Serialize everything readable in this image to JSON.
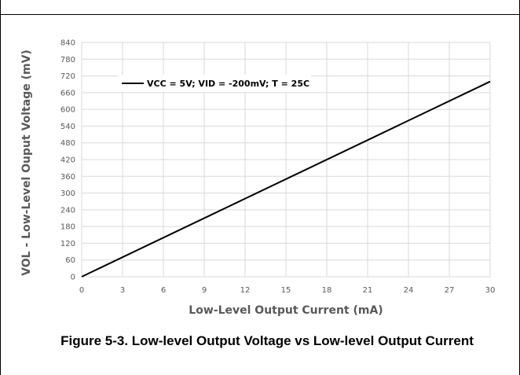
{
  "chart_data": {
    "type": "line",
    "xlabel": "Low-Level Output Current (mA)",
    "ylabel": "VOL - Low-Level Ouput Voltage (mV)",
    "xlim": [
      0,
      30
    ],
    "ylim": [
      0,
      840
    ],
    "x_ticks": [
      0,
      3,
      6,
      9,
      12,
      15,
      18,
      21,
      24,
      27,
      30
    ],
    "y_ticks": [
      0,
      60,
      120,
      180,
      240,
      300,
      360,
      420,
      480,
      540,
      600,
      660,
      720,
      780,
      840
    ],
    "grid": true,
    "legend_position": "top-left",
    "series": [
      {
        "name": "VCC = 5V; VID = -200mV; T = 25C",
        "color": "#000000",
        "x": [
          0,
          30
        ],
        "y": [
          0,
          700
        ]
      }
    ]
  },
  "caption": "Figure 5-3. Low-level Output Voltage vs Low-level Output Current",
  "colors": {
    "grid": "#d9d9d9",
    "text": "#595959",
    "line": "#000000"
  }
}
